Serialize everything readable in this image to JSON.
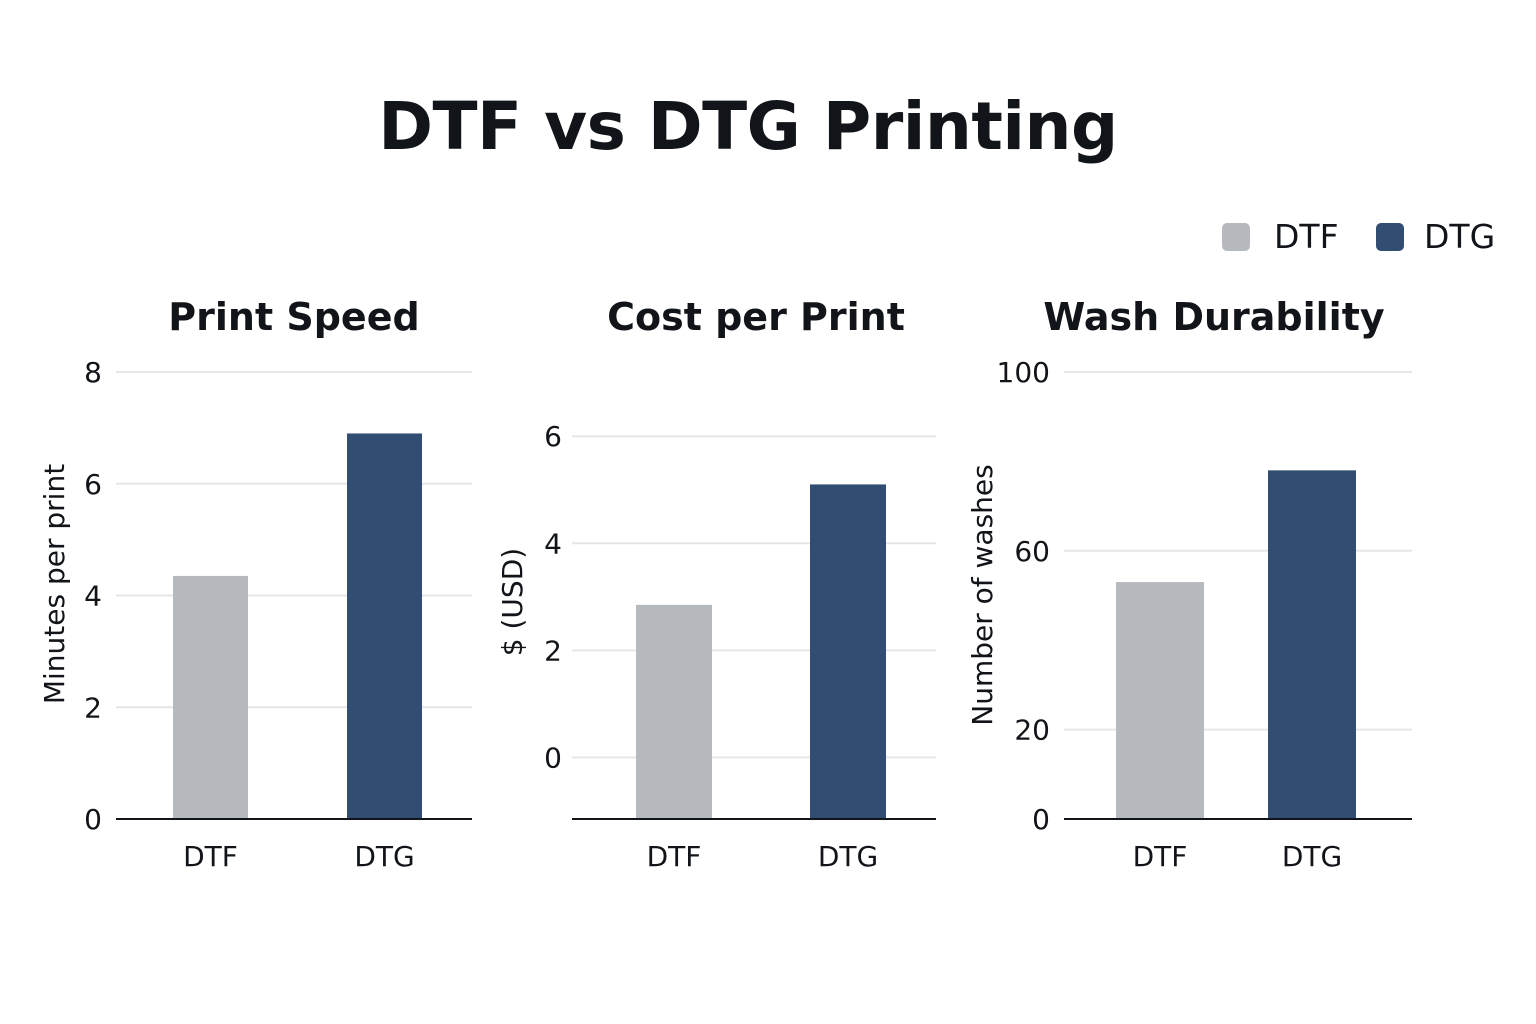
{
  "title": "DTF vs DTG Printing",
  "legend": [
    {
      "label": "DTF",
      "color": "#b6b9bd"
    },
    {
      "label": "DTG",
      "color": "#324d72"
    }
  ],
  "colors": {
    "dtf": "#b6b9bd",
    "dtg": "#324d72"
  },
  "chart_data": [
    {
      "type": "bar",
      "title": "Print Speed",
      "ylabel": "Minutes per print",
      "categories": [
        "DTF",
        "DTG"
      ],
      "values": [
        4.35,
        6.9
      ],
      "ylim": [
        0,
        8
      ],
      "yticks": [
        0,
        2,
        4,
        6,
        8
      ],
      "grid": true
    },
    {
      "type": "bar",
      "title": "Cost per Print",
      "ylabel": "$ (USD)",
      "categories": [
        "DTF",
        "DTG"
      ],
      "values": [
        2.85,
        5.1
      ],
      "ylim": [
        -1.15,
        7.2
      ],
      "yticks": [
        0,
        2,
        4,
        6
      ],
      "grid": true
    },
    {
      "type": "bar",
      "title": "Wash Durability",
      "ylabel": "Number of washes",
      "categories": [
        "DTF",
        "DTG"
      ],
      "values": [
        53,
        78
      ],
      "ylim": [
        0,
        100
      ],
      "yticks": [
        0,
        20,
        60,
        100
      ],
      "grid": true
    }
  ]
}
